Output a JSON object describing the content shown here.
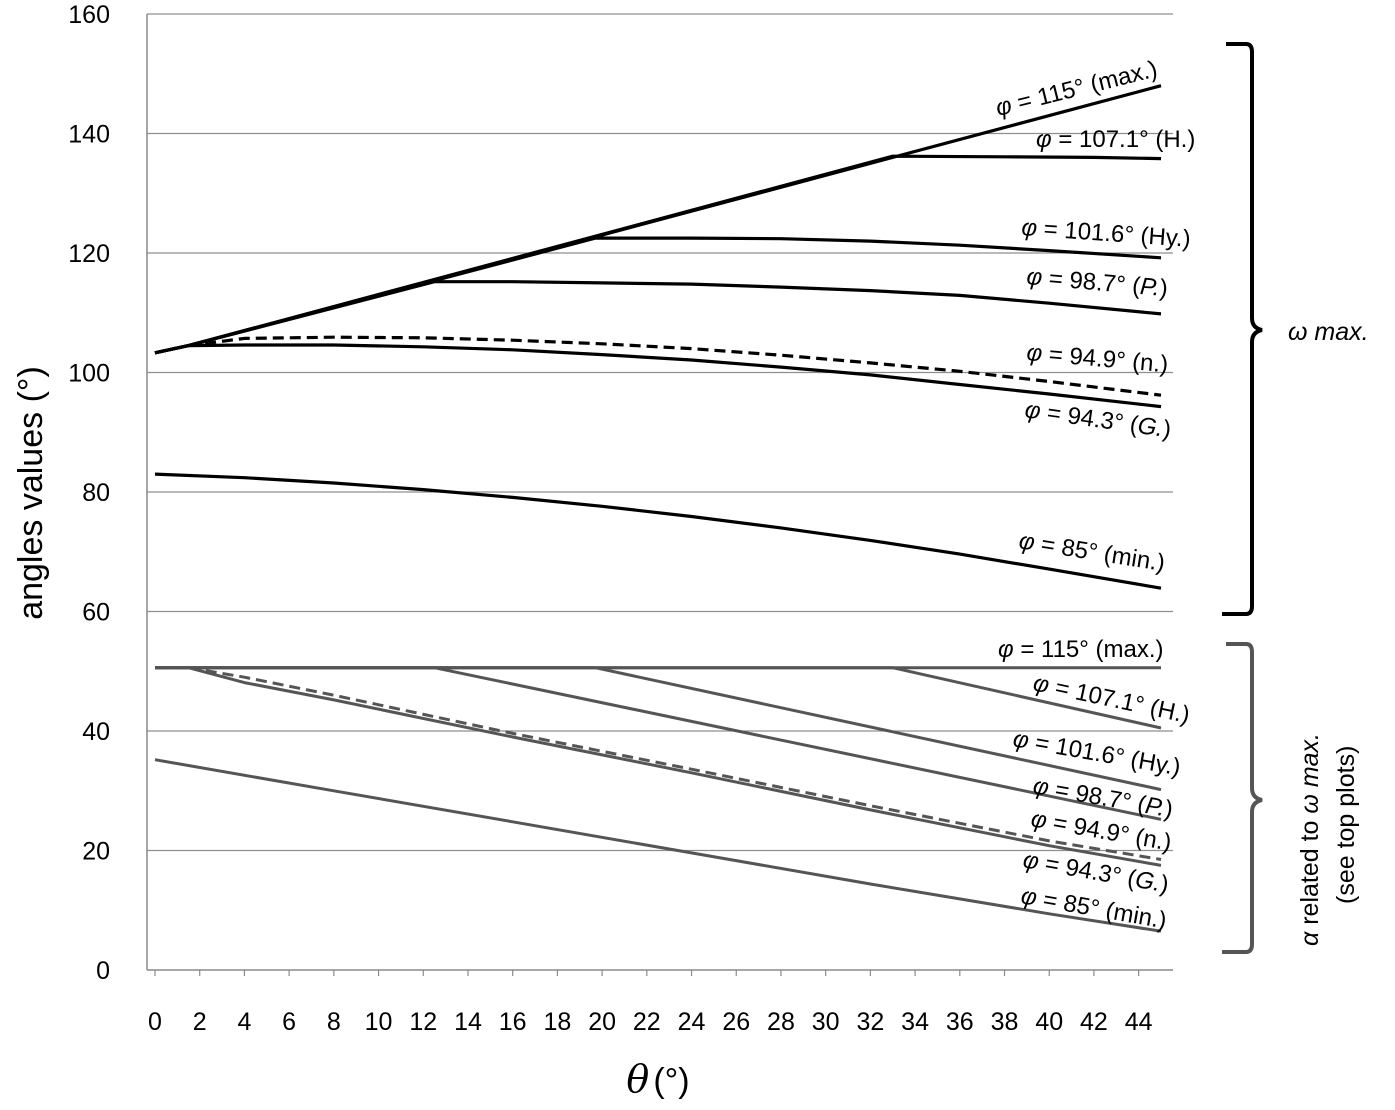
{
  "chart_data": {
    "type": "line",
    "xlabel_symbol": "θ",
    "xlabel_unit": "(°)",
    "ylabel": "angles values (°)",
    "xlim": [
      0,
      45
    ],
    "ylim": [
      0,
      160
    ],
    "grid": true,
    "x_ticks": [
      "0",
      "2",
      "4",
      "6",
      "8",
      "10",
      "12",
      "14",
      "16",
      "18",
      "20",
      "22",
      "24",
      "26",
      "28",
      "30",
      "32",
      "34",
      "36",
      "38",
      "40",
      "42",
      "44"
    ],
    "y_ticks": [
      "0",
      "20",
      "40",
      "60",
      "80",
      "100",
      "120",
      "140",
      "160"
    ],
    "groups": [
      {
        "name": "ω max.",
        "color": "#000000",
        "series": [
          {
            "name": "φ = 115° (max.)",
            "style": "solid",
            "x": [
              0,
              1.5,
              45
            ],
            "y": [
              103.3,
              104.5,
              148
            ]
          },
          {
            "name": "φ = 107.1° (H.)",
            "style": "solid",
            "x": [
              0,
              1.5,
              33,
              38,
              42,
              45
            ],
            "y": [
              103.3,
              104.5,
              136.2,
              136.1,
              136.0,
              135.8
            ]
          },
          {
            "name": "φ = 101.6° (Hy.)",
            "style": "solid",
            "x": [
              0,
              1.5,
              19.7,
              24,
              28,
              32,
              36,
              40,
              45
            ],
            "y": [
              103.3,
              104.5,
              122.5,
              122.5,
              122.4,
              122.0,
              121.3,
              120.4,
              119.2
            ]
          },
          {
            "name": "φ = 98.7° (P.)",
            "style": "solid",
            "x": [
              0,
              1.5,
              12.5,
              16,
              20,
              24,
              28,
              32,
              36,
              40,
              45
            ],
            "y": [
              103.3,
              104.5,
              115.2,
              115.2,
              115.0,
              114.8,
              114.3,
              113.7,
              112.9,
              111.6,
              109.8
            ]
          },
          {
            "name": "φ = 94.9° (n.)",
            "style": "dashed",
            "x": [
              0,
              1.5,
              4,
              8,
              12,
              16,
              20,
              24,
              28,
              32,
              36,
              40,
              45
            ],
            "y": [
              103.3,
              104.5,
              105.7,
              105.9,
              105.8,
              105.4,
              104.8,
              104.0,
              102.9,
              101.6,
              100.2,
              98.5,
              96.2
            ]
          },
          {
            "name": "φ = 94.3° (G.)",
            "style": "solid",
            "x": [
              0,
              1.5,
              4,
              8,
              12,
              16,
              20,
              24,
              28,
              32,
              36,
              40,
              45
            ],
            "y": [
              103.3,
              104.5,
              104.6,
              104.6,
              104.3,
              103.8,
              103.0,
              102.1,
              100.9,
              99.6,
              98.0,
              96.4,
              94.3
            ]
          },
          {
            "name": "φ = 85° (min.)",
            "style": "solid",
            "x": [
              0,
              4,
              8,
              12,
              16,
              20,
              24,
              28,
              32,
              36,
              40,
              45
            ],
            "y": [
              83.0,
              82.4,
              81.5,
              80.4,
              79.1,
              77.6,
              75.9,
              74.0,
              71.9,
              69.6,
              67.1,
              63.9
            ]
          }
        ]
      },
      {
        "name": "α related to ω max. (see top plots)",
        "color": "#555555",
        "series": [
          {
            "name": "φ = 115° (max.)",
            "style": "solid",
            "x": [
              0,
              45
            ],
            "y": [
              50.6,
              50.6
            ]
          },
          {
            "name": "φ = 107.1° (H.)",
            "style": "solid",
            "x": [
              0,
              33,
              45
            ],
            "y": [
              50.6,
              50.6,
              40.5
            ]
          },
          {
            "name": "φ = 101.6° (Hy.)",
            "style": "solid",
            "x": [
              0,
              19.7,
              45
            ],
            "y": [
              50.6,
              50.6,
              30.2
            ]
          },
          {
            "name": "φ = 98.7° (P.)",
            "style": "solid",
            "x": [
              0,
              12.5,
              45
            ],
            "y": [
              50.6,
              50.6,
              25.2
            ]
          },
          {
            "name": "φ = 94.9° (n.)",
            "style": "dashed",
            "x": [
              0,
              1.5,
              4,
              8,
              16,
              24,
              32,
              40,
              45
            ],
            "y": [
              50.6,
              50.6,
              49.0,
              46.0,
              39.6,
              33.6,
              27.5,
              21.6,
              18.5
            ]
          },
          {
            "name": "φ = 94.3° (G.)",
            "style": "solid",
            "x": [
              0,
              1.5,
              4,
              8,
              16,
              24,
              32,
              40,
              45
            ],
            "y": [
              50.6,
              50.6,
              48.1,
              45.2,
              39.0,
              33.0,
              26.8,
              20.8,
              17.5
            ]
          },
          {
            "name": "φ = 85° (min.)",
            "style": "solid",
            "x": [
              0,
              8,
              16,
              24,
              32,
              40,
              45
            ],
            "y": [
              35.2,
              30.0,
              24.8,
              19.6,
              14.4,
              9.4,
              6.5
            ]
          }
        ]
      }
    ]
  },
  "curve_labels": {
    "top": [
      {
        "phi": "φ",
        "value": " = 115° (max.)"
      },
      {
        "phi": "φ",
        "value": " = 107.1° (H.)"
      },
      {
        "phi": "φ",
        "value": " = 101.6° (Hy.)"
      },
      {
        "phi": "φ",
        "value": " = 98.7° (",
        "abbr": "P.",
        "close": ")"
      },
      {
        "phi": "φ",
        "value": " = 94.9° (n.)"
      },
      {
        "phi": "φ",
        "value": " = 94.3° (",
        "abbr": "G.",
        "close": ")"
      },
      {
        "phi": "φ",
        "value": " = 85° (min.)"
      }
    ],
    "bottom": [
      {
        "phi": "φ",
        "value": " = 115° (max.)"
      },
      {
        "phi": "φ",
        "value": " = 107.1° (H.)"
      },
      {
        "phi": "φ",
        "value": " = 101.6° (Hy.)"
      },
      {
        "phi": "φ",
        "value": " = 98.7° (",
        "abbr": "P.",
        "close": ")"
      },
      {
        "phi": "φ",
        "value": " = 94.9° (n.)"
      },
      {
        "phi": "φ",
        "value": " = 94.3° (",
        "abbr": "G.",
        "close": ")"
      },
      {
        "phi": "φ",
        "value": " = 85° (min.)"
      }
    ]
  },
  "brackets": {
    "top_label": "ω max.",
    "bottom_label_line1_symbol": "α",
    "bottom_label_line1_text": " related to ",
    "bottom_label_line1_tail": "ω max.",
    "bottom_label_line2": "(see top plots)"
  }
}
